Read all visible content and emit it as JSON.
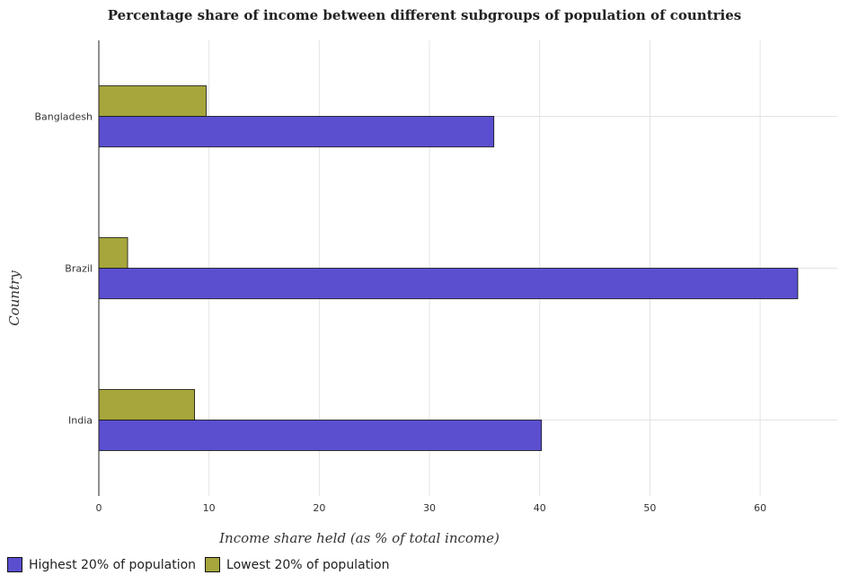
{
  "chart_data": {
    "type": "bar",
    "orientation": "horizontal",
    "title": "Percentage share of income between different subgroups of population of countries",
    "xlabel": "Income share held (as % of total income)",
    "ylabel": "Country",
    "categories": [
      "Bangladesh",
      "Brazil",
      "India"
    ],
    "series": [
      {
        "name": "Highest 20% of population",
        "color": "#5b4fd0",
        "values": [
          35.84,
          63.41,
          40.16
        ]
      },
      {
        "name": "Lowest 20% of population",
        "color": "#a6a63c",
        "values": [
          9.74,
          2.61,
          8.69
        ]
      }
    ],
    "xlim": [
      0,
      67
    ],
    "xticks": [
      "0",
      "10",
      "20",
      "30",
      "40",
      "50",
      "60"
    ],
    "grid": true,
    "legend_position": "bottom-left"
  }
}
